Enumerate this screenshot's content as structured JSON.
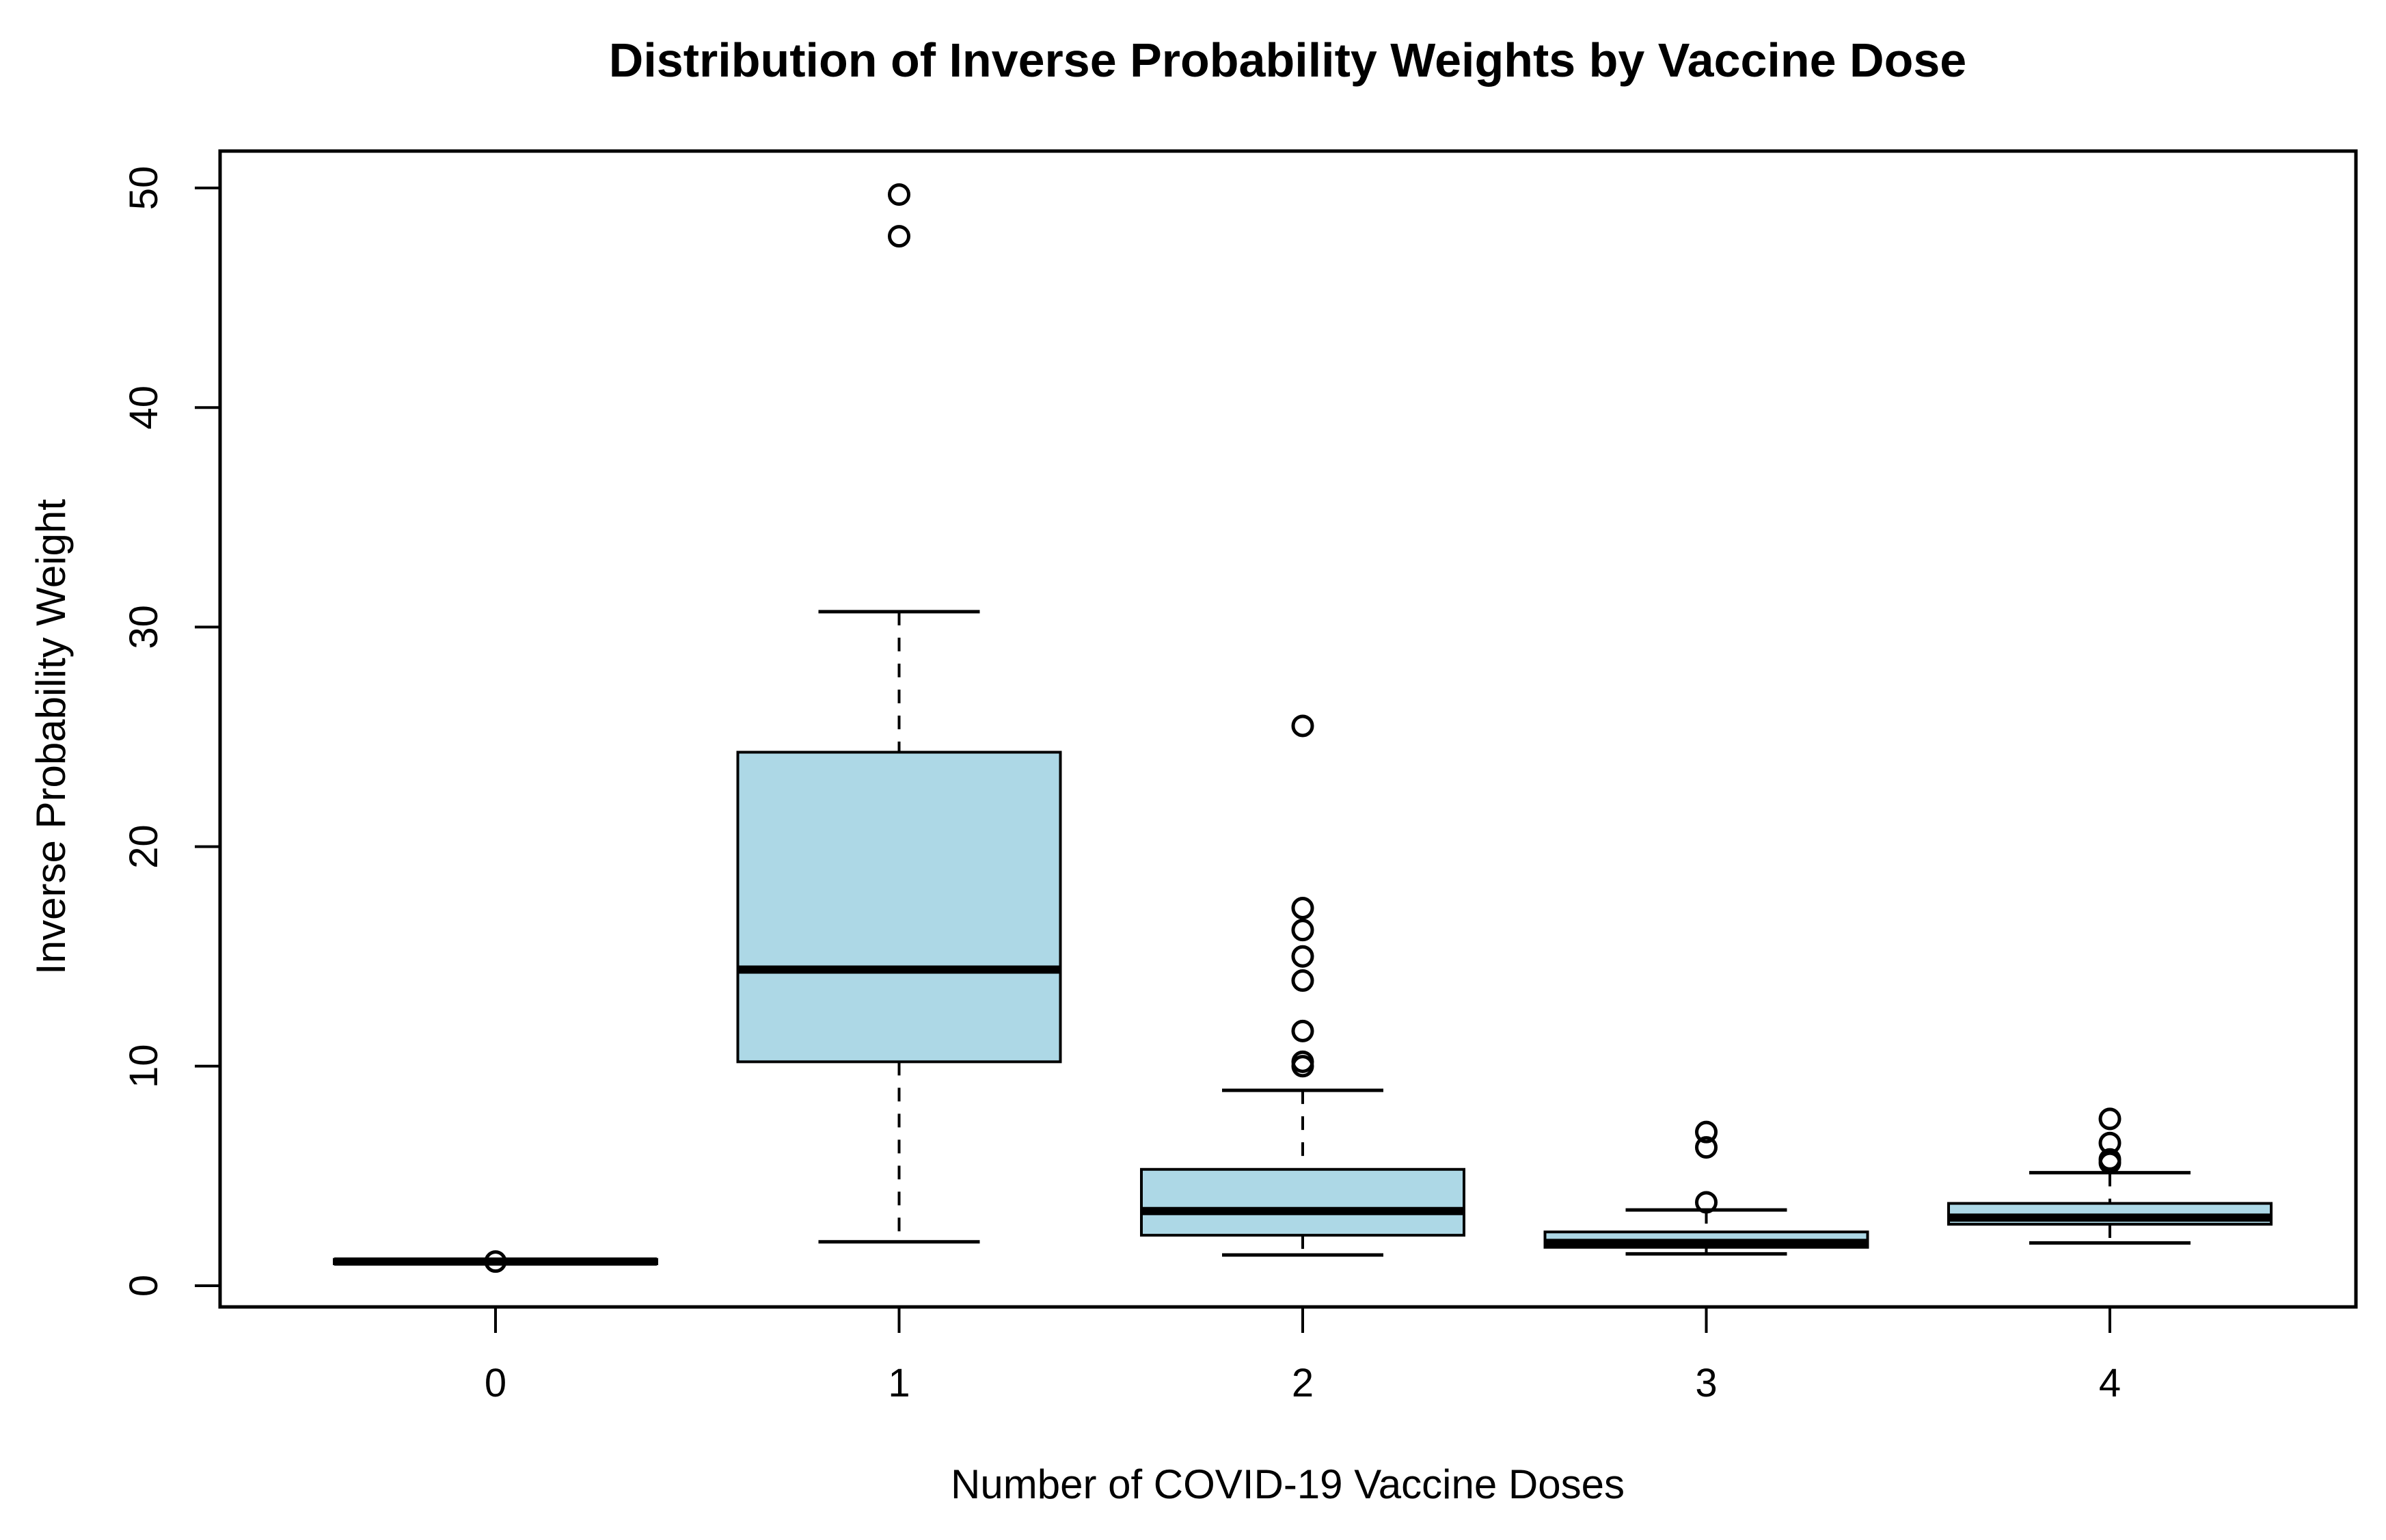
{
  "chart_data": {
    "type": "boxplot",
    "title": "Distribution of Inverse Probability Weights by Vaccine Dose",
    "xlabel": "Number of COVID-19 Vaccine Doses",
    "ylabel": "Inverse Probability Weight",
    "ylim": [
      0,
      50
    ],
    "y_ticks": [
      0,
      10,
      20,
      30,
      40,
      50
    ],
    "y_tick_labels": [
      "0",
      "10",
      "20",
      "30",
      "40",
      "50"
    ],
    "categories": [
      "0",
      "1",
      "2",
      "3",
      "4"
    ],
    "grid": false,
    "legend": "none",
    "box_fill_color": "#ADD8E6",
    "line_color": "#000000",
    "background_color": "#FFFFFF",
    "series": [
      {
        "category": "0",
        "whisker_low": 1.0,
        "q1": 1.0,
        "median": 1.1,
        "q3": 1.2,
        "whisker_high": 1.2,
        "outliers": [
          1.1
        ]
      },
      {
        "category": "1",
        "whisker_low": 2.0,
        "q1": 10.2,
        "median": 14.4,
        "q3": 24.3,
        "whisker_high": 30.7,
        "outliers": [
          47.8,
          49.7
        ]
      },
      {
        "category": "2",
        "whisker_low": 1.4,
        "q1": 2.3,
        "median": 3.4,
        "q3": 5.3,
        "whisker_high": 8.9,
        "outliers": [
          10.0,
          10.2,
          11.6,
          13.9,
          15.0,
          16.2,
          17.2,
          25.5
        ]
      },
      {
        "category": "3",
        "whisker_low": 1.45,
        "q1": 1.75,
        "median": 1.95,
        "q3": 2.45,
        "whisker_high": 3.45,
        "outliers": [
          3.8,
          6.3,
          7.0
        ]
      },
      {
        "category": "4",
        "whisker_low": 1.95,
        "q1": 2.8,
        "median": 3.1,
        "q3": 3.75,
        "whisker_high": 5.15,
        "outliers": [
          5.6,
          5.75,
          6.5,
          7.6
        ]
      }
    ]
  }
}
